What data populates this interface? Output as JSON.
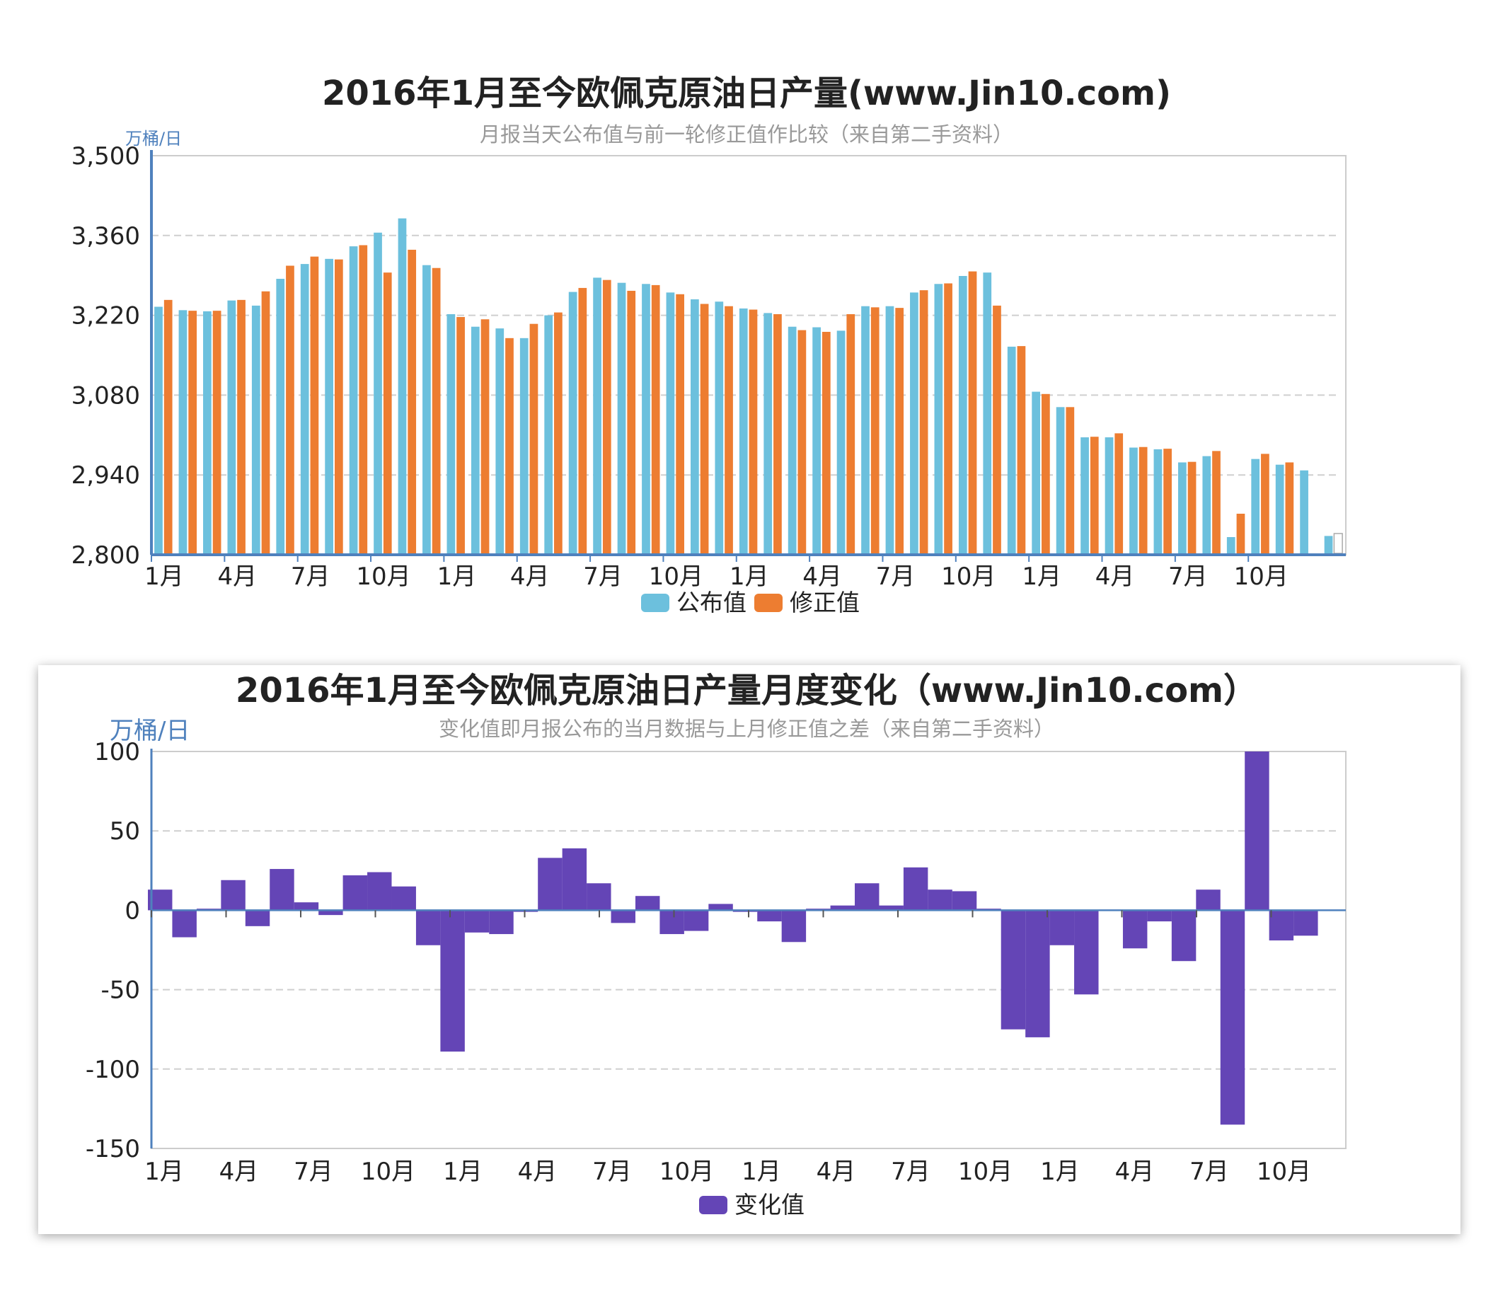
{
  "chart_data": [
    {
      "type": "bar",
      "title": "2016年1月至今欧佩克原油日产量(www.Jin10.com)",
      "subtitle": "月报当天公布值与前一轮修正值作比较（来自第二手资料）",
      "ylabel": "万桶/日",
      "ylim": [
        2800,
        3500
      ],
      "yticks": [
        "3,500",
        "3,360",
        "3,220",
        "3,080",
        "2,940",
        "2,800"
      ],
      "xticks": [
        "1月",
        "4月",
        "7月",
        "10月",
        "1月",
        "4月",
        "7月",
        "10月",
        "1月",
        "4月",
        "7月",
        "10月",
        "1月",
        "4月",
        "7月",
        "10月"
      ],
      "grid": true,
      "legend_position": "bottom-center",
      "series": [
        {
          "name": "公布值",
          "color": "#6cc0dd",
          "values": [
            3235,
            3229,
            3227,
            3246,
            3237,
            3284,
            3310,
            3319,
            3341,
            3365,
            3390,
            3308,
            3222,
            3200,
            3197,
            3180,
            3220,
            3261,
            3286,
            3277,
            3275,
            3260,
            3248,
            3244,
            3232,
            3224,
            3200,
            3199,
            3193,
            3236,
            3236,
            3260,
            3275,
            3289,
            3295,
            3165,
            3086,
            3059,
            3006,
            3006,
            2988,
            2985,
            2962,
            2973,
            2831,
            2968,
            2958,
            2948,
            2833
          ]
        },
        {
          "name": "修正值",
          "color": "#ed7d31",
          "values": [
            3247,
            3228,
            3228,
            3247,
            3262,
            3307,
            3323,
            3318,
            3343,
            3295,
            3335,
            3303,
            3217,
            3213,
            3180,
            3205,
            3225,
            3268,
            3282,
            3263,
            3273,
            3257,
            3240,
            3236,
            3230,
            3222,
            3194,
            3191,
            3222,
            3234,
            3233,
            3264,
            3276,
            3297,
            3237,
            3166,
            3082,
            3059,
            3007,
            3013,
            2989,
            2986,
            2963,
            2982,
            2872,
            2977,
            2962,
            null,
            null
          ]
        }
      ]
    },
    {
      "type": "bar",
      "title": "2016年1月至今欧佩克原油日产量月度变化（www.Jin10.com）",
      "subtitle": "变化值即月报公布的当月数据与上月修正值之差（来自第二手资料）",
      "ylabel": "万桶/日",
      "ylim": [
        -150,
        100
      ],
      "yticks": [
        "100",
        "50",
        "0",
        "-50",
        "-100",
        "-150"
      ],
      "xticks": [
        "1月",
        "4月",
        "7月",
        "10月",
        "1月",
        "4月",
        "7月",
        "10月",
        "1月",
        "4月",
        "7月",
        "10月",
        "1月",
        "4月",
        "7月",
        "10月"
      ],
      "grid": true,
      "legend_position": "bottom-center",
      "series": [
        {
          "name": "变化值",
          "color": "#6445b6",
          "values": [
            13,
            -17,
            1,
            19,
            -10,
            26,
            5,
            -3,
            22,
            24,
            15,
            -22,
            -89,
            -14,
            -15,
            -1,
            33,
            39,
            17,
            -8,
            9,
            -15,
            -13,
            4,
            -1,
            -7,
            -20,
            1,
            3,
            17,
            3,
            27,
            13,
            12,
            1,
            -75,
            -80,
            -22,
            -53,
            0,
            -24,
            -7,
            -32,
            13,
            -135,
            100,
            -19,
            -16
          ]
        }
      ]
    }
  ]
}
